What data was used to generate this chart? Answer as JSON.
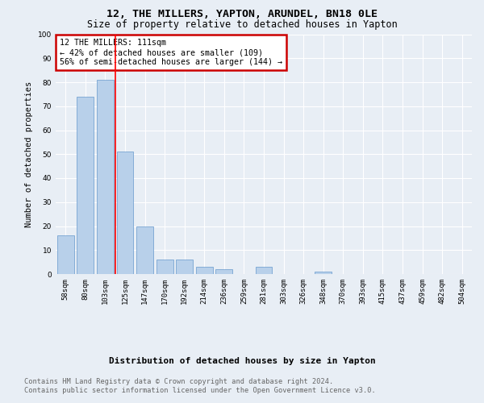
{
  "title": "12, THE MILLERS, YAPTON, ARUNDEL, BN18 0LE",
  "subtitle": "Size of property relative to detached houses in Yapton",
  "xlabel": "Distribution of detached houses by size in Yapton",
  "ylabel": "Number of detached properties",
  "footnote1": "Contains HM Land Registry data © Crown copyright and database right 2024.",
  "footnote2": "Contains public sector information licensed under the Open Government Licence v3.0.",
  "annotation_line1": "12 THE MILLERS: 111sqm",
  "annotation_line2": "← 42% of detached houses are smaller (109)",
  "annotation_line3": "56% of semi-detached houses are larger (144) →",
  "bar_categories": [
    "58sqm",
    "80sqm",
    "103sqm",
    "125sqm",
    "147sqm",
    "170sqm",
    "192sqm",
    "214sqm",
    "236sqm",
    "259sqm",
    "281sqm",
    "303sqm",
    "326sqm",
    "348sqm",
    "370sqm",
    "393sqm",
    "415sqm",
    "437sqm",
    "459sqm",
    "482sqm",
    "504sqm"
  ],
  "bar_values": [
    16,
    74,
    81,
    51,
    20,
    6,
    6,
    3,
    2,
    0,
    3,
    0,
    0,
    1,
    0,
    0,
    0,
    0,
    0,
    0,
    0
  ],
  "bar_color": "#b8d0ea",
  "bar_edge_color": "#6699cc",
  "red_line_x": 2.5,
  "ylim": [
    0,
    100
  ],
  "yticks": [
    0,
    10,
    20,
    30,
    40,
    50,
    60,
    70,
    80,
    90,
    100
  ],
  "bg_color": "#e8eef5",
  "plot_bg_color": "#e8eef5",
  "grid_color": "#ffffff",
  "annotation_box_color": "#ffffff",
  "annotation_box_edge_color": "#cc0000",
  "title_fontsize": 9.5,
  "subtitle_fontsize": 8.5,
  "xlabel_fontsize": 8,
  "ylabel_fontsize": 7.5,
  "tick_fontsize": 6.5,
  "annotation_fontsize": 7.2,
  "footnote_fontsize": 6.2
}
